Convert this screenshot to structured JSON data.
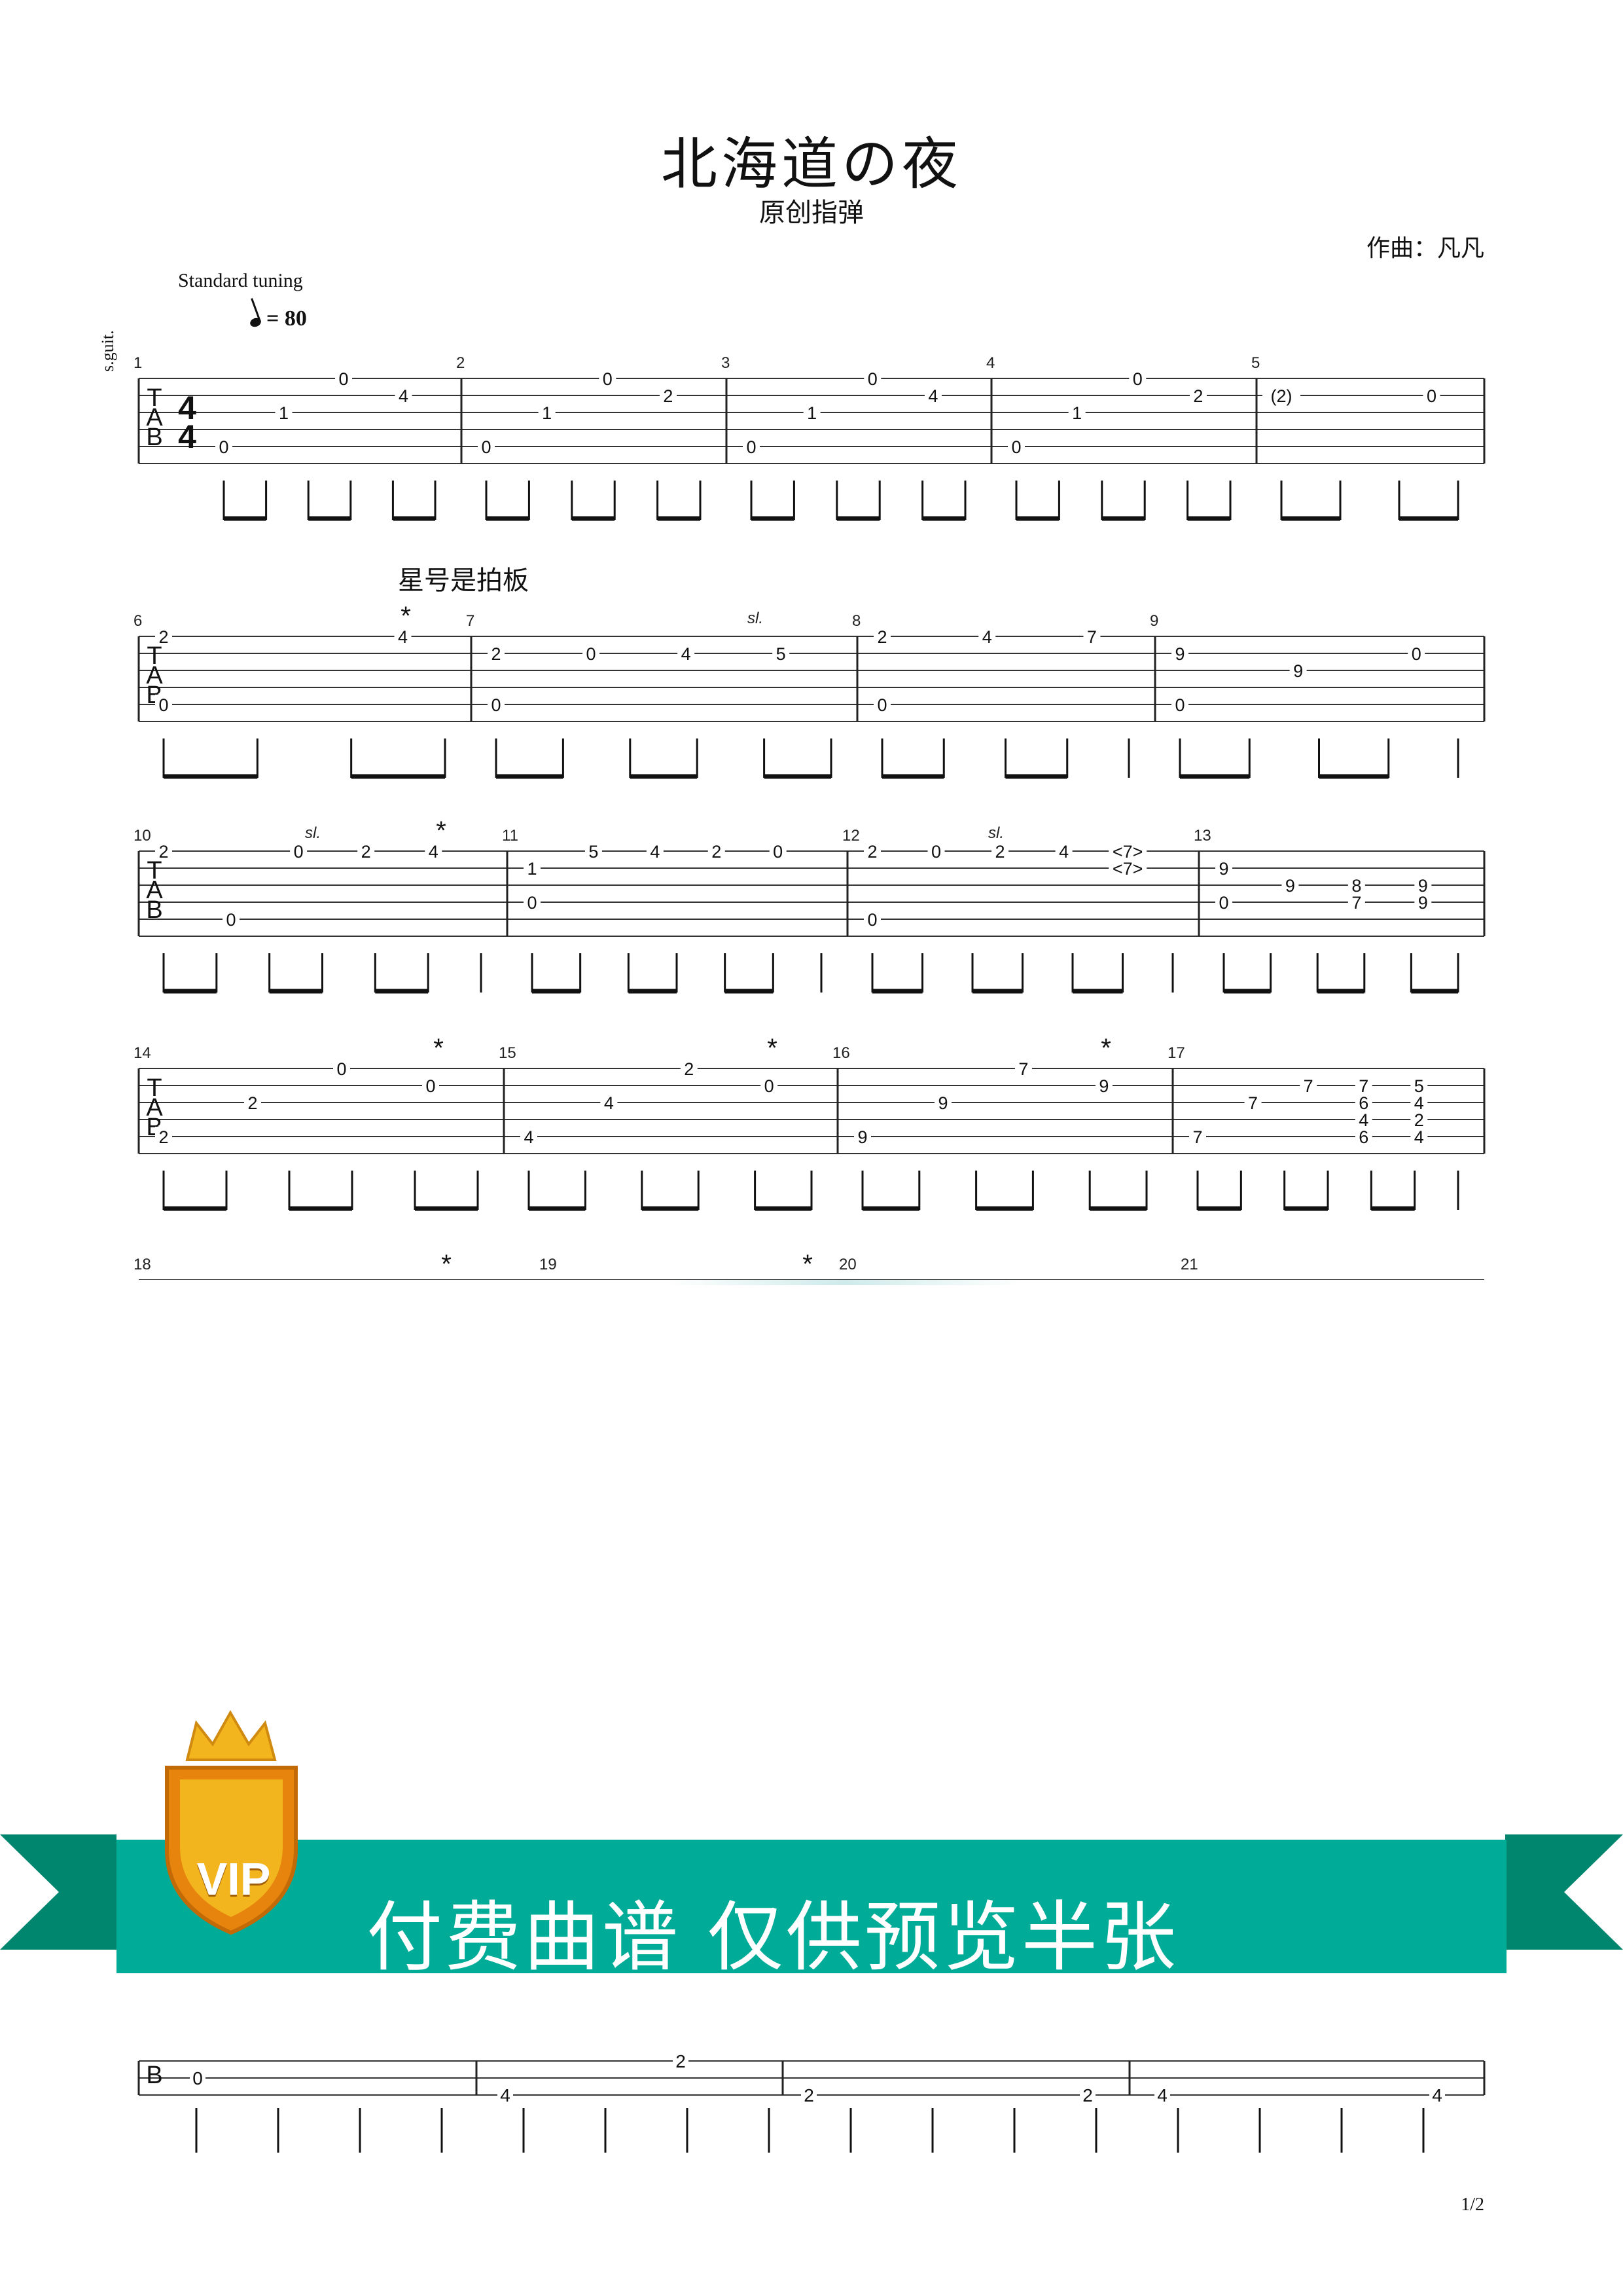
{
  "header": {
    "title": "北海道の夜",
    "subtitle": "原创指弹",
    "composer": "作曲：凡凡",
    "tuning": "Standard tuning",
    "tempo_value": "= 80",
    "instrument": "s.guit."
  },
  "annotation": "星号是拍板",
  "time_signature": [
    "4",
    "4"
  ],
  "tab_clef": [
    "T",
    "A",
    "B"
  ],
  "slide_label": "sl.",
  "beat_mark": "*",
  "systems": [
    {
      "measures": [
        {
          "number": "1",
          "notes": [
            {
              "fret": "0",
              "string": 5
            },
            {
              "fret": "1",
              "string": 3
            },
            {
              "fret": "0",
              "string": 1
            },
            {
              "fret": "4",
              "string": 2
            }
          ]
        },
        {
          "number": "2",
          "notes": [
            {
              "fret": "0",
              "string": 5
            },
            {
              "fret": "1",
              "string": 3
            },
            {
              "fret": "0",
              "string": 1
            },
            {
              "fret": "2",
              "string": 2
            }
          ]
        },
        {
          "number": "3",
          "notes": [
            {
              "fret": "0",
              "string": 5
            },
            {
              "fret": "1",
              "string": 3
            },
            {
              "fret": "0",
              "string": 1
            },
            {
              "fret": "4",
              "string": 2
            }
          ]
        },
        {
          "number": "4",
          "notes": [
            {
              "fret": "0",
              "string": 5
            },
            {
              "fret": "1",
              "string": 3
            },
            {
              "fret": "0",
              "string": 1
            },
            {
              "fret": "2",
              "string": 2
            }
          ]
        },
        {
          "number": "5",
          "notes": [
            {
              "fret": "(2)",
              "string": 2
            },
            {
              "fret": "0",
              "string": 2
            }
          ]
        }
      ]
    },
    {
      "measures": [
        {
          "number": "6",
          "notes": [
            {
              "fret": "2",
              "string": 1
            },
            {
              "fret": "0",
              "string": 5
            },
            {
              "fret": "4",
              "string": 1
            }
          ]
        },
        {
          "number": "7",
          "notes": [
            {
              "fret": "2",
              "string": 2
            },
            {
              "fret": "0",
              "string": 5
            },
            {
              "fret": "0",
              "string": 2
            },
            {
              "fret": "4",
              "string": 2
            },
            {
              "fret": "5",
              "string": 2
            }
          ]
        },
        {
          "number": "8",
          "notes": [
            {
              "fret": "2",
              "string": 1
            },
            {
              "fret": "0",
              "string": 5
            },
            {
              "fret": "4",
              "string": 1
            },
            {
              "fret": "7",
              "string": 1
            }
          ]
        },
        {
          "number": "9",
          "notes": [
            {
              "fret": "9",
              "string": 2
            },
            {
              "fret": "0",
              "string": 5
            },
            {
              "fret": "9",
              "string": 3
            },
            {
              "fret": "0",
              "string": 2
            }
          ]
        }
      ]
    },
    {
      "measures": [
        {
          "number": "10",
          "notes": [
            {
              "fret": "2",
              "string": 1
            },
            {
              "fret": "0",
              "string": 5
            },
            {
              "fret": "0",
              "string": 1
            },
            {
              "fret": "2",
              "string": 1
            },
            {
              "fret": "4",
              "string": 1
            }
          ]
        },
        {
          "number": "11",
          "notes": [
            {
              "fret": "1",
              "string": 2
            },
            {
              "fret": "0",
              "string": 4
            },
            {
              "fret": "5",
              "string": 1
            },
            {
              "fret": "4",
              "string": 1
            },
            {
              "fret": "2",
              "string": 1
            },
            {
              "fret": "0",
              "string": 1
            }
          ]
        },
        {
          "number": "12",
          "notes": [
            {
              "fret": "2",
              "string": 1
            },
            {
              "fret": "0",
              "string": 5
            },
            {
              "fret": "0",
              "string": 1
            },
            {
              "fret": "2",
              "string": 1
            },
            {
              "fret": "4",
              "string": 1
            },
            {
              "fret": "<7>",
              "string": 1
            },
            {
              "fret": "<7>",
              "string": 2
            }
          ]
        },
        {
          "number": "13",
          "notes": [
            {
              "fret": "9",
              "string": 2
            },
            {
              "fret": "0",
              "string": 4
            },
            {
              "fret": "9",
              "string": 3
            },
            {
              "fret": "8",
              "string": 3
            },
            {
              "fret": "7",
              "string": 4
            },
            {
              "fret": "9",
              "string": 3
            },
            {
              "fret": "9",
              "string": 4
            }
          ]
        }
      ]
    },
    {
      "measures": [
        {
          "number": "14",
          "notes": [
            {
              "fret": "2",
              "string": 5
            },
            {
              "fret": "2",
              "string": 3
            },
            {
              "fret": "0",
              "string": 1
            },
            {
              "fret": "0",
              "string": 2
            }
          ]
        },
        {
          "number": "15",
          "notes": [
            {
              "fret": "4",
              "string": 5
            },
            {
              "fret": "4",
              "string": 3
            },
            {
              "fret": "2",
              "string": 1
            },
            {
              "fret": "0",
              "string": 2
            }
          ]
        },
        {
          "number": "16",
          "notes": [
            {
              "fret": "9",
              "string": 5
            },
            {
              "fret": "9",
              "string": 3
            },
            {
              "fret": "7",
              "string": 1
            },
            {
              "fret": "9",
              "string": 2
            }
          ]
        },
        {
          "number": "17",
          "notes": [
            {
              "fret": "7",
              "string": 5
            },
            {
              "fret": "7",
              "string": 3
            },
            {
              "fret": "7",
              "string": 2
            },
            {
              "fret": "7",
              "string": 2
            },
            {
              "fret": "6",
              "string": 3
            },
            {
              "fret": "4",
              "string": 4
            },
            {
              "fret": "6",
              "string": 5
            },
            {
              "fret": "5",
              "string": 2
            },
            {
              "fret": "4",
              "string": 3
            },
            {
              "fret": "2",
              "string": 4
            },
            {
              "fret": "4",
              "string": 5
            }
          ]
        }
      ]
    },
    {
      "measures": [
        {
          "number": "18",
          "notes": []
        },
        {
          "number": "19",
          "notes": []
        },
        {
          "number": "20",
          "notes": []
        },
        {
          "number": "21",
          "notes": []
        }
      ]
    },
    {
      "partial": true,
      "frets": [
        "0",
        "4",
        "2",
        "2",
        "2",
        "4",
        "4"
      ]
    }
  ],
  "paywall": {
    "badge": "VIP",
    "text": "付费曲谱  仅供预览半张",
    "colors": {
      "ribbon": "#00ab98",
      "ribbon_fold": "#00866f",
      "badge_gold": "#f2b51e",
      "badge_orange": "#e6840e"
    }
  },
  "footer": {
    "page": "1/2"
  }
}
